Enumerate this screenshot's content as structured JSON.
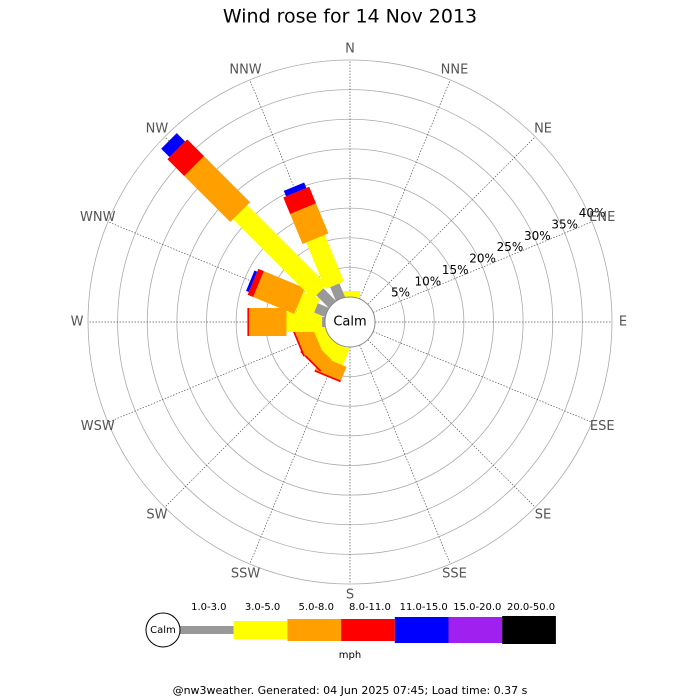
{
  "chart_data": {
    "type": "windrose",
    "title": "Wind rose for 14 Nov 2013",
    "categories": [
      "N",
      "NNE",
      "NE",
      "ENE",
      "E",
      "ESE",
      "SE",
      "SSE",
      "S",
      "SSW",
      "SW",
      "WSW",
      "W",
      "WNW",
      "NW",
      "NNW"
    ],
    "series": [
      {
        "name": "1.0-3.0",
        "color": "#999999",
        "values": [
          0,
          0,
          0,
          0,
          0,
          0,
          0,
          0,
          0,
          0,
          0,
          0,
          0.5,
          2,
          3,
          2.5
        ]
      },
      {
        "name": "3.0-5.0",
        "color": "#ffff00",
        "values": [
          1,
          0,
          0,
          0,
          0,
          0,
          0,
          0,
          0,
          3,
          2.5,
          2,
          6,
          3,
          19,
          8.5
        ]
      },
      {
        "name": "5.0-8.0",
        "color": "#ffa000",
        "values": [
          0,
          0,
          0,
          0,
          0,
          0,
          0,
          0,
          0,
          2.5,
          2.5,
          3,
          6.3,
          7.5,
          11,
          5.5
        ]
      },
      {
        "name": "8.0-11.0",
        "color": "#ff0000",
        "values": [
          0,
          0,
          0,
          0,
          0,
          0,
          0,
          0,
          0,
          0.3,
          0.3,
          0.3,
          0.3,
          1,
          4,
          3
        ]
      },
      {
        "name": "11.0-15.0",
        "color": "#0000ff",
        "values": [
          0,
          0,
          0,
          0,
          0,
          0,
          0,
          0,
          0,
          0,
          0,
          0,
          0,
          0.5,
          2,
          1
        ]
      },
      {
        "name": "15.0-20.0",
        "color": "#a020f0",
        "values": [
          0,
          0,
          0,
          0,
          0,
          0,
          0,
          0,
          0,
          0,
          0,
          0,
          0,
          0,
          0,
          0
        ]
      },
      {
        "name": "20.0-50.0",
        "color": "#000000",
        "values": [
          0,
          0,
          0,
          0,
          0,
          0,
          0,
          0,
          0,
          0,
          0,
          0,
          0,
          0,
          0,
          0
        ]
      }
    ],
    "rlim": [
      0,
      40
    ],
    "rticks": [
      {
        "value": 5,
        "label": "5%"
      },
      {
        "value": 10,
        "label": "10%"
      },
      {
        "value": 15,
        "label": "15%"
      },
      {
        "value": 20,
        "label": "20%"
      },
      {
        "value": 25,
        "label": "25%"
      },
      {
        "value": 30,
        "label": "30%"
      },
      {
        "value": 35,
        "label": "35%"
      },
      {
        "value": 40,
        "label": "40%"
      }
    ],
    "calm_label": "Calm",
    "unit": "mph",
    "footer": "@nw3weather. Generated: 04 Jun 2025 07:45; Load time: 0.37 s"
  }
}
